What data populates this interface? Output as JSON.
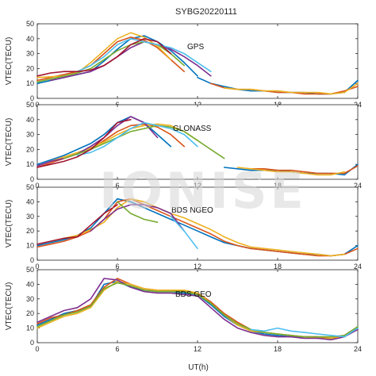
{
  "title": "SYBG20220111",
  "watermark": "IONISE",
  "colors": [
    "#0072BD",
    "#D95319",
    "#EDB120",
    "#7E2F8E",
    "#77AC30",
    "#4DBEEE",
    "#A2142F"
  ],
  "chart_data": [
    {
      "type": "line",
      "label": "GPS",
      "ylabel": "VTEC(TECU)",
      "xlim": [
        0,
        24
      ],
      "ylim": [
        0,
        50
      ],
      "xticks": [
        "0",
        "6",
        "12",
        "18",
        "24"
      ],
      "yticks": [
        "0",
        "10",
        "20",
        "30",
        "40",
        "50"
      ],
      "series": [
        {
          "x": [
            0,
            2,
            4,
            5,
            6,
            7,
            8,
            9,
            10,
            11,
            12
          ],
          "y": [
            10,
            14,
            18,
            25,
            33,
            40,
            42,
            38,
            32,
            24,
            15
          ]
        },
        {
          "x": [
            0,
            1,
            2,
            3,
            4,
            5,
            6,
            7,
            8,
            9,
            10,
            11
          ],
          "y": [
            12,
            14,
            16,
            18,
            22,
            30,
            38,
            41,
            39,
            34,
            26,
            18
          ]
        },
        {
          "x": [
            0,
            2,
            3,
            4,
            5,
            6,
            7,
            8,
            9,
            10
          ],
          "y": [
            14,
            15,
            17,
            24,
            32,
            40,
            44,
            41,
            35,
            26
          ]
        },
        {
          "x": [
            1,
            2,
            3,
            4,
            5,
            6,
            7,
            8,
            9,
            10,
            11,
            12,
            13
          ],
          "y": [
            12,
            14,
            16,
            18,
            22,
            28,
            34,
            38,
            36,
            33,
            28,
            22,
            15
          ]
        },
        {
          "x": [
            0,
            1,
            2,
            3,
            4,
            5,
            6,
            7,
            8,
            9,
            10,
            11
          ],
          "y": [
            11,
            13,
            15,
            17,
            20,
            26,
            32,
            36,
            38,
            36,
            30,
            22
          ]
        },
        {
          "x": [
            3,
            4,
            5,
            6,
            7,
            8,
            9,
            10,
            11,
            12,
            13
          ],
          "y": [
            18,
            22,
            28,
            36,
            40,
            38,
            36,
            34,
            30,
            24,
            18
          ]
        },
        {
          "x": [
            0,
            1,
            2,
            3,
            4,
            5,
            6,
            7,
            8,
            9,
            10
          ],
          "y": [
            15,
            17,
            18,
            18,
            19,
            22,
            28,
            36,
            40,
            38,
            30
          ]
        },
        {
          "x": [
            12,
            13,
            14,
            15,
            16,
            17,
            18,
            19,
            20,
            21,
            22,
            23,
            24
          ],
          "y": [
            14,
            10,
            8,
            6,
            5,
            5,
            4,
            4,
            4,
            3,
            3,
            4,
            12
          ]
        },
        {
          "x": [
            13,
            14,
            15,
            16,
            17,
            18,
            19,
            20,
            21,
            22,
            23,
            24
          ],
          "y": [
            10,
            7,
            6,
            6,
            5,
            4,
            4,
            3,
            3,
            3,
            5,
            8
          ]
        },
        {
          "x": [
            14,
            15,
            16,
            17,
            18,
            19,
            20,
            21,
            22,
            23,
            24
          ],
          "y": [
            7,
            6,
            6,
            5,
            5,
            4,
            4,
            4,
            3,
            4,
            10
          ]
        }
      ]
    },
    {
      "type": "line",
      "label": "GLONASS",
      "ylabel": "VTEC(TECU)",
      "xlim": [
        0,
        24
      ],
      "ylim": [
        0,
        50
      ],
      "xticks": [
        "0",
        "6",
        "12",
        "18",
        "24"
      ],
      "yticks": [
        "0",
        "10",
        "20",
        "30",
        "40",
        "50"
      ],
      "series": [
        {
          "x": [
            0,
            1,
            2,
            3,
            4,
            5,
            6,
            7,
            8,
            9,
            10
          ],
          "y": [
            10,
            13,
            16,
            20,
            24,
            30,
            38,
            42,
            38,
            30,
            22
          ]
        },
        {
          "x": [
            0,
            1,
            2,
            3,
            4,
            5,
            6,
            7,
            8,
            9,
            10,
            11
          ],
          "y": [
            8,
            11,
            14,
            17,
            20,
            26,
            32,
            36,
            37,
            35,
            30,
            22
          ]
        },
        {
          "x": [
            1,
            2,
            3,
            4,
            5,
            6,
            7,
            8,
            9,
            10,
            11,
            12
          ],
          "y": [
            12,
            15,
            18,
            21,
            25,
            30,
            34,
            36,
            37,
            36,
            32,
            26
          ]
        },
        {
          "x": [
            0,
            1,
            2,
            3,
            4,
            5,
            6,
            7,
            8,
            9
          ],
          "y": [
            9,
            12,
            14,
            17,
            22,
            28,
            36,
            42,
            38,
            28
          ]
        },
        {
          "x": [
            2,
            3,
            4,
            5,
            6,
            7,
            8,
            9,
            10,
            11,
            12,
            13,
            14
          ],
          "y": [
            14,
            17,
            20,
            24,
            28,
            32,
            34,
            36,
            35,
            32,
            26,
            20,
            14
          ]
        },
        {
          "x": [
            3,
            4,
            5,
            6,
            7,
            8,
            9,
            10,
            11,
            12
          ],
          "y": [
            16,
            18,
            22,
            28,
            34,
            38,
            36,
            34,
            30,
            22
          ]
        },
        {
          "x": [
            0,
            1,
            2,
            3,
            4,
            5,
            6,
            7
          ],
          "y": [
            8,
            10,
            12,
            15,
            20,
            28,
            38,
            40
          ]
        },
        {
          "x": [
            14,
            15,
            16,
            17,
            18,
            19,
            20,
            21,
            22,
            23,
            24
          ],
          "y": [
            8,
            7,
            6,
            6,
            6,
            5,
            4,
            4,
            4,
            3,
            10
          ]
        },
        {
          "x": [
            16,
            17,
            18,
            19,
            20,
            21,
            22,
            23,
            24
          ],
          "y": [
            7,
            7,
            6,
            6,
            5,
            4,
            4,
            4,
            9
          ]
        },
        {
          "x": [
            15,
            16,
            17,
            18,
            19,
            20,
            21,
            22,
            23
          ],
          "y": [
            8,
            7,
            6,
            5,
            5,
            4,
            3,
            3,
            5
          ]
        }
      ]
    },
    {
      "type": "line",
      "label": "BDS NGEO",
      "ylabel": "VTEC(TECU)",
      "xlim": [
        0,
        24
      ],
      "ylim": [
        0,
        50
      ],
      "xticks": [
        "0",
        "6",
        "12",
        "18",
        "24"
      ],
      "yticks": [
        "0",
        "10",
        "20",
        "30",
        "40",
        "50"
      ],
      "series": [
        {
          "x": [
            0,
            1,
            2,
            3,
            4,
            5,
            6,
            7,
            8,
            9,
            10,
            11,
            12,
            13,
            14,
            15,
            16,
            17,
            18,
            19,
            20,
            21,
            22,
            23,
            24
          ],
          "y": [
            10,
            12,
            14,
            17,
            22,
            32,
            42,
            40,
            36,
            32,
            28,
            24,
            20,
            16,
            12,
            10,
            8,
            7,
            6,
            5,
            4,
            4,
            3,
            4,
            10
          ]
        },
        {
          "x": [
            0,
            1,
            2,
            3,
            4,
            5,
            6,
            7,
            8,
            9,
            10,
            11,
            12,
            13,
            14,
            15,
            16,
            17,
            18,
            19,
            20,
            21,
            22,
            23,
            24
          ],
          "y": [
            9,
            11,
            13,
            16,
            20,
            28,
            40,
            42,
            38,
            34,
            30,
            26,
            22,
            18,
            13,
            10,
            8,
            7,
            6,
            5,
            4,
            3,
            3,
            4,
            8
          ]
        },
        {
          "x": [
            1,
            2,
            3,
            4,
            5,
            6,
            7,
            8,
            9,
            10,
            11,
            12,
            13,
            14,
            15,
            16,
            17,
            18,
            19,
            20,
            21,
            22,
            23
          ],
          "y": [
            13,
            15,
            17,
            21,
            26,
            36,
            42,
            40,
            36,
            32,
            29,
            25,
            21,
            16,
            12,
            9,
            8,
            7,
            6,
            5,
            4,
            3,
            4
          ]
        },
        {
          "x": [
            4,
            5,
            6,
            7,
            8,
            9,
            10,
            11
          ],
          "y": [
            20,
            28,
            35,
            38,
            38,
            36,
            32,
            20
          ]
        },
        {
          "x": [
            6,
            7,
            8,
            9
          ],
          "y": [
            40,
            32,
            28,
            26
          ]
        },
        {
          "x": [
            10,
            11,
            12
          ],
          "y": [
            30,
            20,
            8
          ]
        },
        {
          "x": [
            0,
            1,
            2,
            3,
            4,
            5,
            6
          ],
          "y": [
            11,
            13,
            15,
            16,
            24,
            32,
            38
          ]
        }
      ]
    },
    {
      "type": "line",
      "label": "BDS GEO",
      "ylabel": "VTEC(TECU)",
      "xlim": [
        0,
        24
      ],
      "ylim": [
        0,
        50
      ],
      "xticks": [
        "0",
        "6",
        "12",
        "18",
        "24"
      ],
      "yticks": [
        "0",
        "10",
        "20",
        "30",
        "40",
        "50"
      ],
      "series": [
        {
          "x": [
            0,
            1,
            2,
            3,
            4,
            5,
            6,
            7,
            8,
            9,
            10,
            11,
            12,
            13,
            14,
            15,
            16,
            17,
            18,
            19,
            20,
            21,
            22,
            23,
            24
          ],
          "y": [
            12,
            16,
            20,
            22,
            25,
            40,
            42,
            38,
            36,
            35,
            35,
            34,
            33,
            26,
            18,
            12,
            8,
            6,
            5,
            4,
            4,
            3,
            3,
            4,
            10
          ]
        },
        {
          "x": [
            0,
            1,
            2,
            3,
            4,
            5,
            6,
            7,
            8,
            9,
            10,
            11,
            12,
            13,
            14,
            15,
            16,
            17,
            18,
            19,
            20,
            21,
            22,
            23,
            24
          ],
          "y": [
            13,
            17,
            19,
            22,
            26,
            38,
            44,
            40,
            37,
            36,
            36,
            35,
            34,
            28,
            20,
            14,
            9,
            7,
            6,
            5,
            4,
            4,
            3,
            5,
            11
          ]
        },
        {
          "x": [
            0,
            1,
            2,
            3,
            4,
            5,
            6,
            7,
            8,
            9,
            10,
            11,
            12,
            13,
            14,
            15,
            16,
            17,
            18,
            19,
            20,
            21,
            22,
            23,
            24
          ],
          "y": [
            10,
            14,
            18,
            20,
            24,
            36,
            42,
            40,
            37,
            36,
            36,
            36,
            34,
            27,
            19,
            12,
            8,
            7,
            6,
            5,
            4,
            3,
            3,
            4,
            10
          ]
        },
        {
          "x": [
            0,
            1,
            2,
            3,
            4,
            5,
            6,
            7,
            8,
            9,
            10,
            11,
            12,
            13,
            14,
            15,
            16,
            17,
            18,
            19,
            20,
            21,
            22,
            23,
            24
          ],
          "y": [
            14,
            18,
            22,
            24,
            30,
            44,
            43,
            38,
            35,
            34,
            34,
            33,
            32,
            24,
            16,
            10,
            7,
            5,
            4,
            4,
            3,
            3,
            2,
            4,
            9
          ]
        },
        {
          "x": [
            0,
            1,
            2,
            3,
            4,
            5,
            6,
            7,
            8,
            9,
            10,
            11,
            12,
            13,
            14,
            15,
            16,
            17,
            18,
            19,
            20,
            21,
            22,
            23,
            24
          ],
          "y": [
            11,
            15,
            19,
            21,
            25,
            37,
            41,
            39,
            36,
            35,
            35,
            35,
            33,
            27,
            19,
            13,
            9,
            7,
            6,
            5,
            4,
            4,
            4,
            5,
            11
          ]
        },
        {
          "x": [
            16,
            17,
            18,
            19,
            20,
            21,
            22,
            23,
            24
          ],
          "y": [
            9,
            8,
            10,
            8,
            7,
            6,
            5,
            4,
            10
          ]
        }
      ]
    }
  ],
  "xlabel": "UT(h)"
}
